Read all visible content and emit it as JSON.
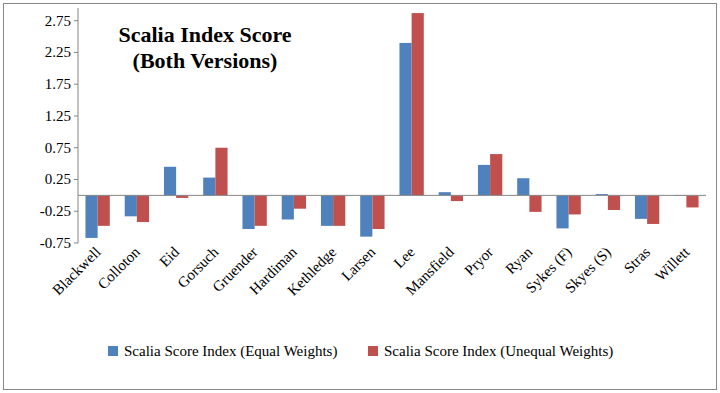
{
  "chart_data": {
    "type": "bar",
    "title": "Scalia Index Score",
    "subtitle": "(Both Versions)",
    "categories": [
      "Blackwell",
      "Colloton",
      "Eid",
      "Gorsuch",
      "Gruender",
      "Hardiman",
      "Kethledge",
      "Larsen",
      "Lee",
      "Mansfield",
      "Pryor",
      "Ryan",
      "Sykes (F)",
      "Skyes (S)",
      "Stras",
      "Willett"
    ],
    "series": [
      {
        "name": "Scalia Score Index (Equal Weights)",
        "color": "#4f81bd",
        "values": [
          -0.67,
          -0.33,
          0.45,
          0.28,
          -0.53,
          -0.38,
          -0.48,
          -0.65,
          2.4,
          0.05,
          0.48,
          0.27,
          -0.52,
          0.02,
          -0.37,
          -0.01
        ]
      },
      {
        "name": "Scalia Score Index (Unequal Weights)",
        "color": "#c0504d",
        "values": [
          -0.48,
          -0.42,
          -0.04,
          0.75,
          -0.48,
          -0.21,
          -0.48,
          -0.53,
          2.87,
          -0.09,
          0.65,
          -0.26,
          -0.3,
          -0.23,
          -0.45,
          -0.19
        ]
      }
    ],
    "ylim": [
      -0.75,
      2.95
    ],
    "yticks": [
      -0.75,
      -0.25,
      0.25,
      0.75,
      1.25,
      1.75,
      2.25,
      2.75
    ],
    "grid": false,
    "legend": "bottom"
  }
}
